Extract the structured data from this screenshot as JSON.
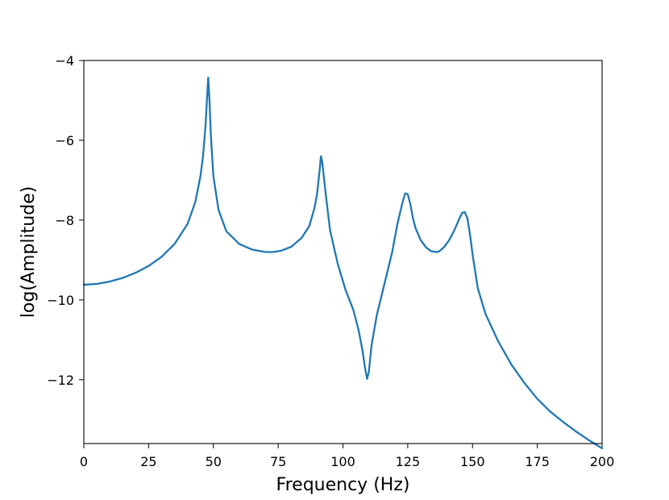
{
  "chart_data": {
    "type": "line",
    "title": "",
    "xlabel": "Frequency (Hz)",
    "ylabel": "log(Amplitude)",
    "xlim": [
      0,
      200
    ],
    "ylim": [
      -13.6,
      -4
    ],
    "x_ticks": [
      0,
      25,
      50,
      75,
      100,
      125,
      150,
      175,
      200
    ],
    "y_ticks": [
      -12,
      -10,
      -8,
      -6,
      -4
    ],
    "x_tick_labels": [
      "0",
      "25",
      "50",
      "75",
      "100",
      "125",
      "150",
      "175",
      "200"
    ],
    "y_tick_labels": [
      "−12",
      "−10",
      "−8",
      "−6",
      "−4"
    ],
    "grid": false,
    "legend": "none",
    "line_color": "#1f77b4",
    "series": [
      {
        "x": [
          0,
          5,
          10,
          15,
          20,
          25,
          30,
          35,
          40,
          43,
          45,
          46,
          47,
          47.5,
          48,
          48.5,
          49,
          50,
          52,
          55,
          60,
          65,
          70,
          73,
          76,
          80,
          84,
          87,
          89,
          90,
          91,
          91.5,
          92,
          93,
          95,
          98,
          101,
          104,
          106,
          107.5,
          108.5,
          109.3,
          110,
          111,
          113,
          116,
          119,
          121,
          123,
          124,
          125,
          126,
          127,
          128,
          130,
          132,
          134,
          136,
          137,
          139,
          141,
          143,
          145,
          146,
          147,
          148,
          149,
          150,
          152,
          155,
          160,
          165,
          170,
          175,
          180,
          185,
          190,
          195,
          200
        ],
        "y": [
          -9.62,
          -9.6,
          -9.54,
          -9.45,
          -9.32,
          -9.15,
          -8.92,
          -8.6,
          -8.1,
          -7.55,
          -6.9,
          -6.4,
          -5.6,
          -5.0,
          -4.43,
          -5.0,
          -5.85,
          -6.9,
          -7.75,
          -8.28,
          -8.6,
          -8.74,
          -8.8,
          -8.8,
          -8.77,
          -8.67,
          -8.45,
          -8.15,
          -7.7,
          -7.35,
          -6.75,
          -6.4,
          -6.55,
          -7.15,
          -8.25,
          -9.1,
          -9.75,
          -10.25,
          -10.75,
          -11.25,
          -11.7,
          -11.98,
          -11.8,
          -11.15,
          -10.4,
          -9.6,
          -8.8,
          -8.1,
          -7.55,
          -7.33,
          -7.35,
          -7.6,
          -7.95,
          -8.2,
          -8.5,
          -8.68,
          -8.78,
          -8.8,
          -8.79,
          -8.68,
          -8.5,
          -8.25,
          -7.95,
          -7.82,
          -7.8,
          -7.95,
          -8.35,
          -8.85,
          -9.7,
          -10.35,
          -11.05,
          -11.62,
          -12.08,
          -12.48,
          -12.8,
          -13.06,
          -13.3,
          -13.52,
          -13.72
        ]
      }
    ]
  }
}
